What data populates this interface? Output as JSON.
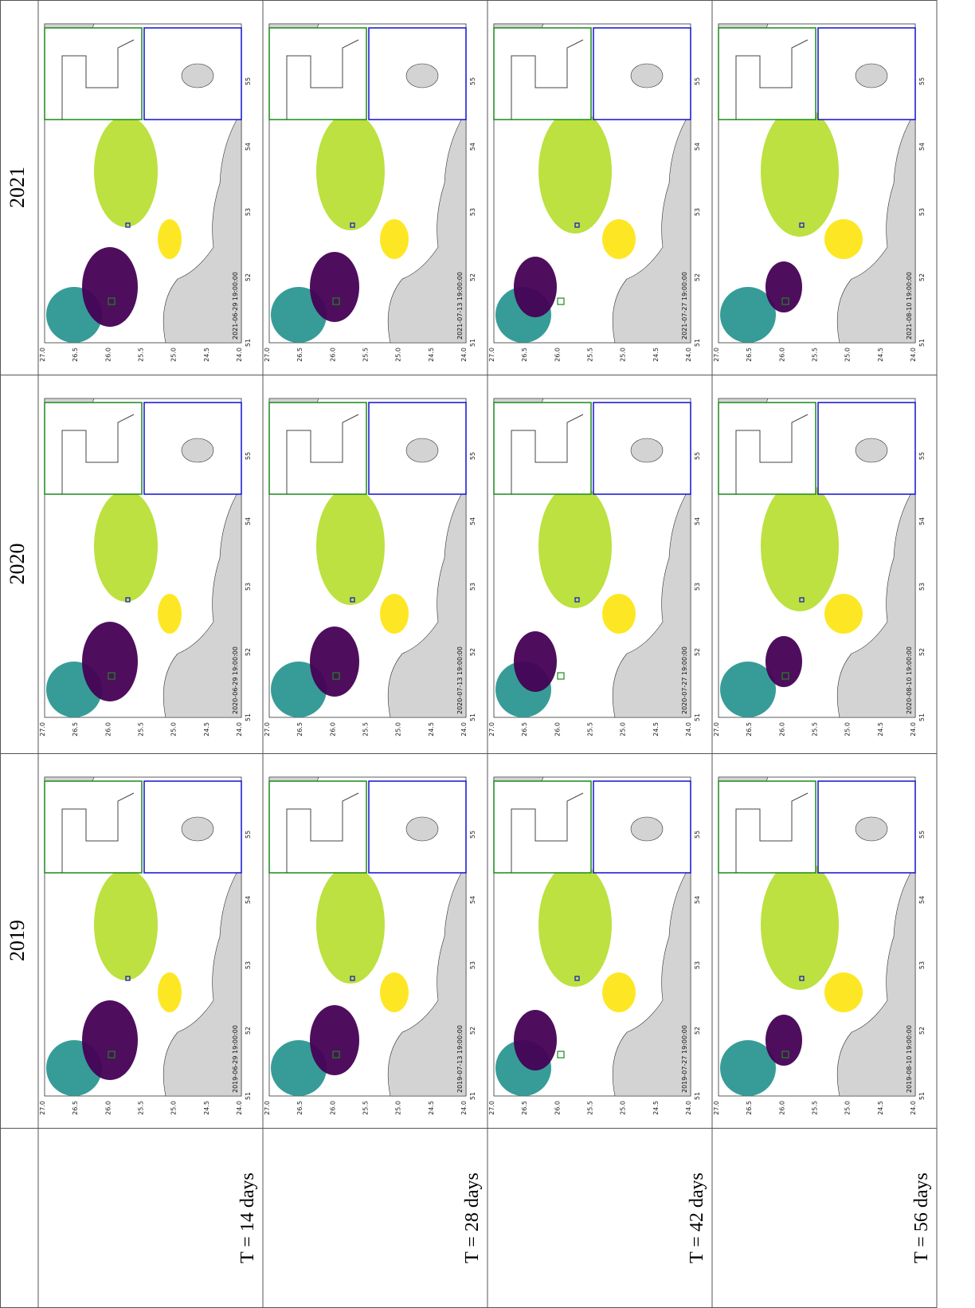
{
  "header": {
    "years": [
      "2021",
      "2020",
      "2019"
    ]
  },
  "rows": [
    {
      "label": "T = 14 days",
      "dates": [
        "2021-06-29 19:00:00",
        "2020-06-29 19:00:00",
        "2019-06-29 19:00:00"
      ]
    },
    {
      "label": "T = 28 days",
      "dates": [
        "2021-07-13 19:00:00",
        "2020-07-13 19:00:00",
        "2019-07-13 19:00:00"
      ]
    },
    {
      "label": "T = 42 days",
      "dates": [
        "2021-07-27 19:00:00",
        "2020-07-27 19:00:00",
        "2019-07-27 19:00:00"
      ]
    },
    {
      "label": "T = 56 days",
      "dates": [
        "2021-08-10 19:00:00",
        "2020-08-10 19:00:00",
        "2019-08-10 19:00:00"
      ]
    }
  ],
  "axes": {
    "lat_ticks": [
      "27.0",
      "26.5",
      "26.0",
      "25.5",
      "25.0",
      "24.5",
      "24.0"
    ],
    "lon_ticks": [
      "51",
      "52",
      "53",
      "54",
      "55"
    ]
  }
}
